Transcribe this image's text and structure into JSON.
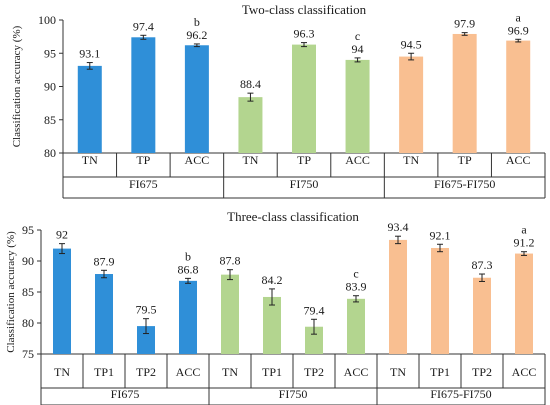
{
  "chart_data": [
    {
      "type": "bar",
      "title": "Two-class classification",
      "ylabel": "Classification accuracy (%)",
      "ylim": [
        80,
        100
      ],
      "yticks": [
        "80",
        "85",
        "90",
        "95",
        "100"
      ],
      "grid": false,
      "groups": [
        {
          "name": "FI675",
          "color": "#2f8fd8",
          "bars": [
            {
              "category": "TN",
              "value": 93.1,
              "label": "93.1",
              "err": 0.5,
              "letter": ""
            },
            {
              "category": "TP",
              "value": 97.4,
              "label": "97.4",
              "err": 0.3,
              "letter": ""
            },
            {
              "category": "ACC",
              "value": 96.2,
              "label": "96.2",
              "err": 0.2,
              "letter": "b"
            }
          ]
        },
        {
          "name": "FI750",
          "color": "#b3d58f",
          "bars": [
            {
              "category": "TN",
              "value": 88.4,
              "label": "88.4",
              "err": 0.6,
              "letter": ""
            },
            {
              "category": "TP",
              "value": 96.3,
              "label": "96.3",
              "err": 0.3,
              "letter": ""
            },
            {
              "category": "ACC",
              "value": 94.0,
              "label": "94",
              "err": 0.3,
              "letter": "c"
            }
          ]
        },
        {
          "name": "FI675-FI750",
          "color": "#f9bf91",
          "bars": [
            {
              "category": "TN",
              "value": 94.5,
              "label": "94.5",
              "err": 0.5,
              "letter": ""
            },
            {
              "category": "TP",
              "value": 97.9,
              "label": "97.9",
              "err": 0.2,
              "letter": ""
            },
            {
              "category": "ACC",
              "value": 96.9,
              "label": "96.9",
              "err": 0.2,
              "letter": "a"
            }
          ]
        }
      ]
    },
    {
      "type": "bar",
      "title": "Three-class classification",
      "ylabel": "Classification accuracy (%)",
      "ylim": [
        75,
        95
      ],
      "yticks": [
        "75",
        "80",
        "85",
        "90",
        "95"
      ],
      "grid": false,
      "groups": [
        {
          "name": "FI675",
          "color": "#2f8fd8",
          "bars": [
            {
              "category": "TN",
              "value": 92.0,
              "label": "92",
              "err": 0.8,
              "letter": ""
            },
            {
              "category": "TP1",
              "value": 87.9,
              "label": "87.9",
              "err": 0.6,
              "letter": ""
            },
            {
              "category": "TP2",
              "value": 79.5,
              "label": "79.5",
              "err": 1.2,
              "letter": ""
            },
            {
              "category": "ACC",
              "value": 86.8,
              "label": "86.8",
              "err": 0.4,
              "letter": "b"
            }
          ]
        },
        {
          "name": "FI750",
          "color": "#b3d58f",
          "bars": [
            {
              "category": "TN",
              "value": 87.8,
              "label": "87.8",
              "err": 0.8,
              "letter": ""
            },
            {
              "category": "TP1",
              "value": 84.2,
              "label": "84.2",
              "err": 1.3,
              "letter": ""
            },
            {
              "category": "TP2",
              "value": 79.4,
              "label": "79.4",
              "err": 1.2,
              "letter": ""
            },
            {
              "category": "ACC",
              "value": 83.9,
              "label": "83.9",
              "err": 0.5,
              "letter": "c"
            }
          ]
        },
        {
          "name": "FI675-FI750",
          "color": "#f9bf91",
          "bars": [
            {
              "category": "TN",
              "value": 93.4,
              "label": "93.4",
              "err": 0.6,
              "letter": ""
            },
            {
              "category": "TP1",
              "value": 92.1,
              "label": "92.1",
              "err": 0.6,
              "letter": ""
            },
            {
              "category": "TP2",
              "value": 87.3,
              "label": "87.3",
              "err": 0.6,
              "letter": ""
            },
            {
              "category": "ACC",
              "value": 91.2,
              "label": "91.2",
              "err": 0.3,
              "letter": "a"
            }
          ]
        }
      ]
    }
  ]
}
